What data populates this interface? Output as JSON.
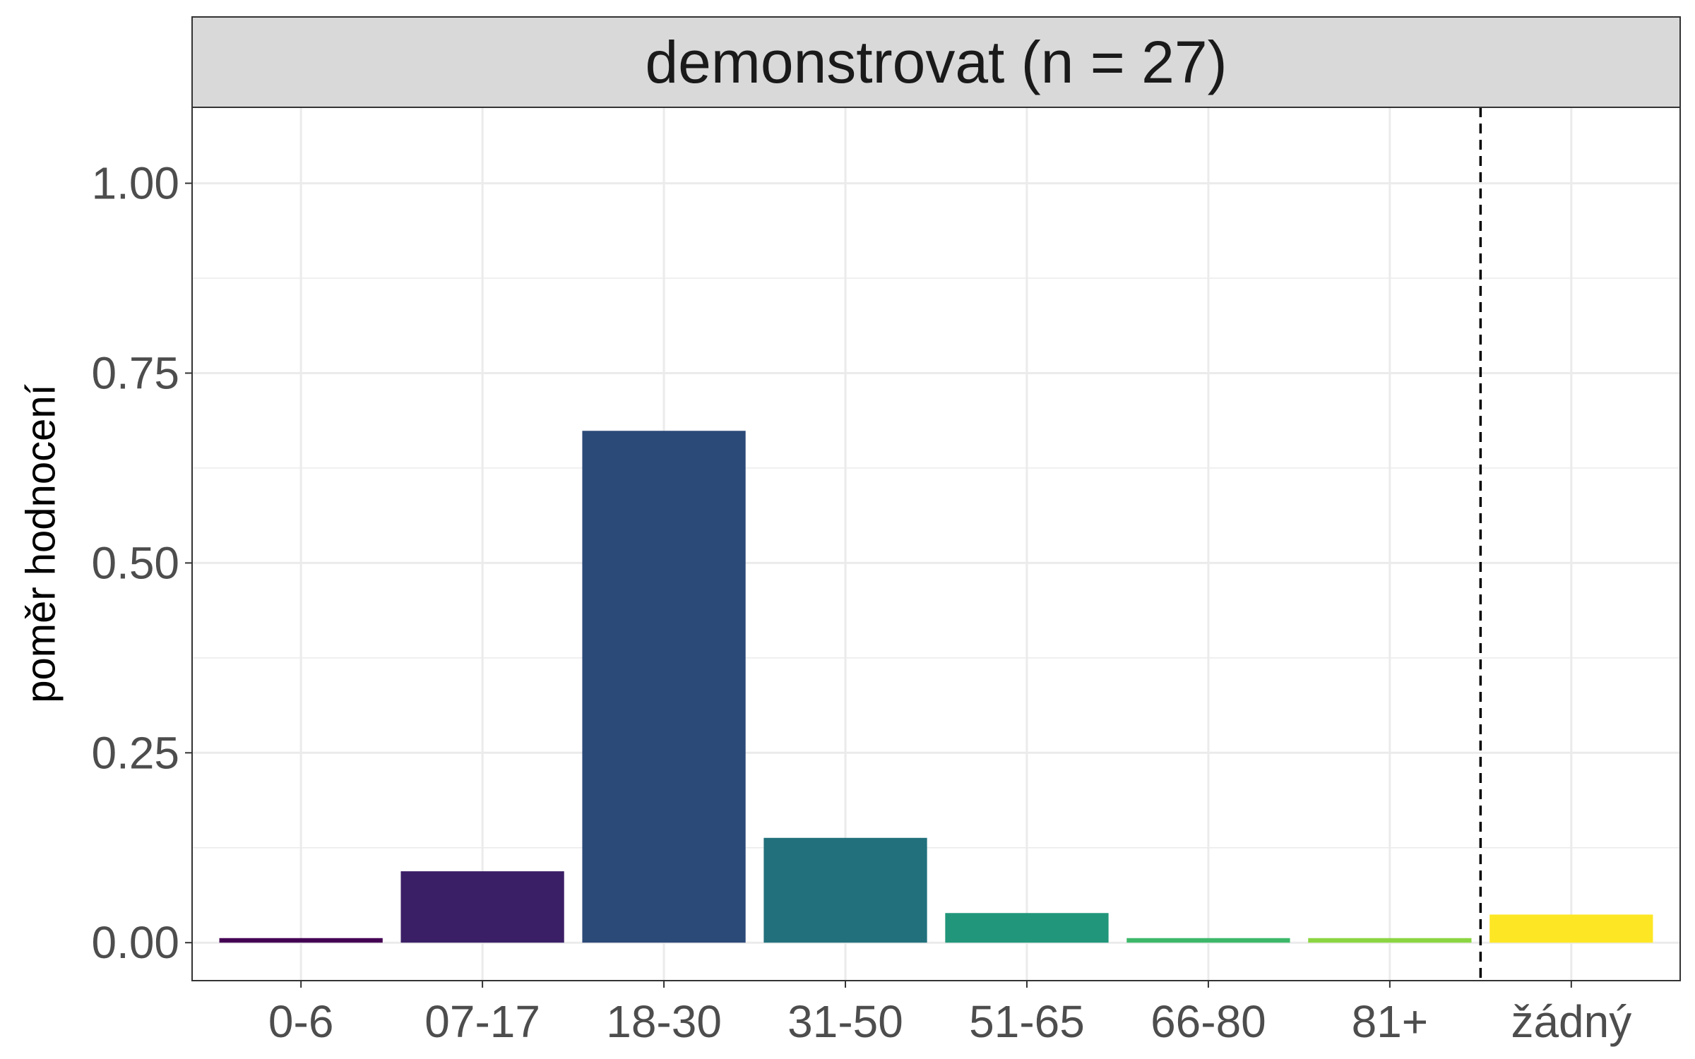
{
  "chart_data": {
    "type": "bar",
    "facet_title": "demonstrovat (n = 27)",
    "xlabel": "",
    "ylabel": "poměr hodnocení",
    "categories": [
      "0-6",
      "07-17",
      "18-30",
      "31-50",
      "51-65",
      "66-80",
      "81+",
      "žádný"
    ],
    "values": [
      0.006,
      0.094,
      0.674,
      0.138,
      0.039,
      0.006,
      0.006,
      0.037
    ],
    "colors": [
      "#440154",
      "#3B1F66",
      "#2C4A78",
      "#21707C",
      "#21967A",
      "#3DB86A",
      "#8CD542",
      "#FDE725"
    ],
    "ylim": [
      -0.05,
      1.1
    ],
    "yticks": [
      0.0,
      0.25,
      0.5,
      0.75,
      1.0
    ],
    "ytick_labels": [
      "0.00",
      "0.25",
      "0.50",
      "0.75",
      "1.00"
    ],
    "separator_after_index": 6,
    "grid": true,
    "legend": "none"
  }
}
